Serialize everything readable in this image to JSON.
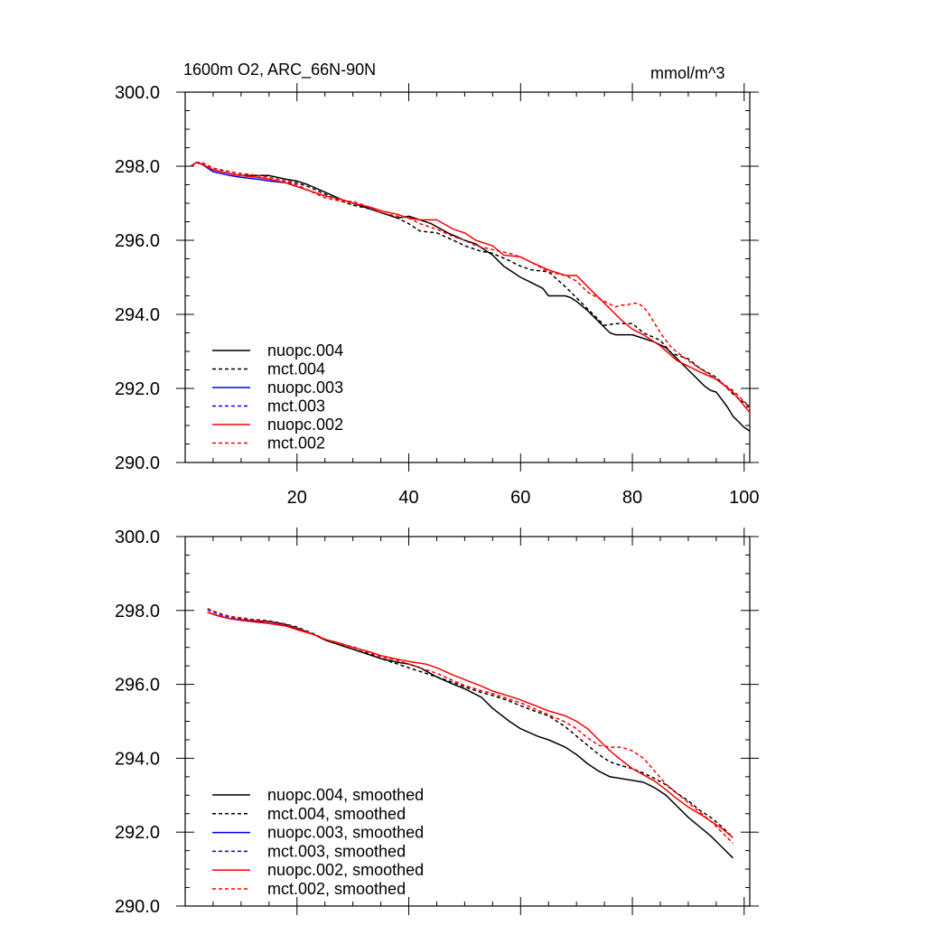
{
  "title_left": "1600m O2, ARC_66N-90N",
  "title_right": "mmol/m^3",
  "chart_data": [
    {
      "type": "line",
      "title": "1600m O2, ARC_66N-90N",
      "units": "mmol/m^3",
      "xlim": [
        0,
        101
      ],
      "ylim": [
        290,
        300
      ],
      "x_ticks": [
        20,
        40,
        60,
        80,
        100
      ],
      "x_tick_labels": [
        "20",
        "40",
        "60",
        "80",
        "100"
      ],
      "y_ticks": [
        290,
        292,
        294,
        296,
        298,
        300
      ],
      "y_tick_labels": [
        "290.0",
        "292.0",
        "294.0",
        "296.0",
        "298.0",
        "300.0"
      ],
      "legend_position": "bottom-left",
      "series": [
        {
          "name": "nuopc.004",
          "color": "#000000",
          "dash": "solid",
          "x": [
            1,
            2,
            3,
            5,
            8,
            10,
            13,
            15,
            18,
            20,
            22,
            25,
            28,
            30,
            33,
            35,
            38,
            40,
            42,
            44,
            47,
            50,
            52,
            55,
            57,
            60,
            62,
            64,
            65,
            66,
            67,
            68,
            69,
            70,
            72,
            74,
            75,
            76,
            77,
            78,
            80,
            82,
            84,
            86,
            88,
            90,
            91,
            92,
            93,
            94,
            95,
            96,
            97,
            98,
            99,
            100,
            101
          ],
          "y": [
            298.0,
            298.1,
            298.05,
            297.9,
            297.8,
            297.75,
            297.75,
            297.75,
            297.65,
            297.6,
            297.5,
            297.3,
            297.1,
            297.0,
            296.85,
            296.75,
            296.6,
            296.65,
            296.55,
            296.45,
            296.2,
            296.0,
            295.9,
            295.6,
            295.3,
            295.0,
            294.85,
            294.7,
            294.5,
            294.5,
            294.5,
            294.5,
            294.45,
            294.35,
            294.1,
            293.8,
            293.65,
            293.5,
            293.45,
            293.45,
            293.45,
            293.35,
            293.25,
            293.1,
            292.8,
            292.5,
            292.35,
            292.2,
            292.05,
            291.95,
            291.9,
            291.7,
            291.5,
            291.25,
            291.1,
            290.95,
            290.85
          ]
        },
        {
          "name": "mct.004",
          "color": "#000000",
          "dash": "dashed",
          "x": [
            1,
            2,
            3,
            5,
            8,
            10,
            13,
            15,
            18,
            20,
            22,
            25,
            28,
            30,
            33,
            35,
            38,
            40,
            42,
            45,
            48,
            50,
            53,
            55,
            58,
            60,
            62,
            65,
            68,
            70,
            72,
            75,
            77,
            80,
            82,
            85,
            87,
            90,
            92,
            95,
            98,
            101
          ],
          "y": [
            298.0,
            298.1,
            298.1,
            297.95,
            297.85,
            297.8,
            297.75,
            297.7,
            297.6,
            297.55,
            297.45,
            297.25,
            297.05,
            296.95,
            296.85,
            296.75,
            296.6,
            296.45,
            296.25,
            296.2,
            296.0,
            295.85,
            295.7,
            295.65,
            295.45,
            295.3,
            295.2,
            295.15,
            294.75,
            294.45,
            294.15,
            293.7,
            293.75,
            293.75,
            293.5,
            293.3,
            292.95,
            292.8,
            292.55,
            292.3,
            291.85,
            291.5
          ]
        },
        {
          "name": "nuopc.003",
          "color": "#0000ff",
          "dash": "solid",
          "x": [
            1,
            2,
            3,
            5,
            8,
            10,
            13,
            15,
            18,
            20
          ],
          "y": [
            298.0,
            298.1,
            298.05,
            297.85,
            297.75,
            297.7,
            297.65,
            297.6,
            297.55,
            297.45
          ]
        },
        {
          "name": "mct.003",
          "color": "#0000ff",
          "dash": "dashed",
          "x": [
            1,
            2,
            3,
            5,
            8,
            10,
            13,
            15,
            18,
            20
          ],
          "y": [
            298.0,
            298.1,
            298.05,
            297.9,
            297.8,
            297.75,
            297.7,
            297.65,
            297.55,
            297.5
          ]
        },
        {
          "name": "nuopc.002",
          "color": "#ff0000",
          "dash": "solid",
          "x": [
            1,
            2,
            3,
            5,
            8,
            10,
            13,
            15,
            18,
            20,
            22,
            25,
            28,
            30,
            33,
            35,
            38,
            40,
            42,
            45,
            48,
            50,
            52,
            55,
            57,
            60,
            62,
            65,
            68,
            70,
            72,
            75,
            78,
            80,
            82,
            85,
            88,
            90,
            92,
            95,
            98,
            101
          ],
          "y": [
            298.0,
            298.1,
            298.05,
            297.9,
            297.8,
            297.75,
            297.7,
            297.65,
            297.55,
            297.45,
            297.35,
            297.2,
            297.1,
            297.0,
            296.9,
            296.8,
            296.7,
            296.6,
            296.55,
            296.55,
            296.3,
            296.2,
            296.0,
            295.85,
            295.6,
            295.55,
            295.4,
            295.2,
            295.05,
            295.05,
            294.75,
            294.3,
            293.85,
            293.6,
            293.45,
            293.15,
            292.75,
            292.6,
            292.45,
            292.25,
            291.9,
            291.35
          ]
        },
        {
          "name": "mct.002",
          "color": "#ff0000",
          "dash": "dashed",
          "x": [
            1,
            2,
            3,
            5,
            8,
            10,
            13,
            15,
            18,
            20,
            22,
            25,
            28,
            30,
            32,
            35,
            38,
            40,
            42,
            45,
            48,
            50,
            52,
            55,
            58,
            60,
            62,
            65,
            68,
            70,
            72,
            75,
            77,
            78,
            79,
            80,
            81,
            82,
            83,
            85,
            87,
            90,
            92,
            95,
            98,
            101
          ],
          "y": [
            298.0,
            298.1,
            298.1,
            297.95,
            297.85,
            297.8,
            297.75,
            297.7,
            297.6,
            297.5,
            297.35,
            297.15,
            297.05,
            297.05,
            296.95,
            296.75,
            296.65,
            296.6,
            296.45,
            296.3,
            296.1,
            296.0,
            295.85,
            295.75,
            295.65,
            295.55,
            295.4,
            295.15,
            295.05,
            294.9,
            294.6,
            294.35,
            294.2,
            294.25,
            294.25,
            294.3,
            294.3,
            294.2,
            294.0,
            293.5,
            293.1,
            292.75,
            292.55,
            292.25,
            291.95,
            291.5
          ]
        }
      ]
    },
    {
      "type": "line",
      "xlim": [
        0,
        101
      ],
      "ylim": [
        290,
        300
      ],
      "x_ticks": [
        20,
        40,
        60,
        80,
        100
      ],
      "x_tick_labels": [
        "",
        "",
        "",
        "",
        ""
      ],
      "y_ticks": [
        290,
        292,
        294,
        296,
        298,
        300
      ],
      "y_tick_labels": [
        "290.0",
        "292.0",
        "294.0",
        "296.0",
        "298.0",
        "300.0"
      ],
      "legend_position": "bottom-left",
      "series": [
        {
          "name": "nuopc.004, smoothed",
          "color": "#000000",
          "dash": "solid",
          "x": [
            4,
            6,
            8,
            10,
            12,
            15,
            18,
            20,
            23,
            25,
            28,
            30,
            33,
            35,
            38,
            40,
            42,
            45,
            48,
            50,
            53,
            55,
            58,
            60,
            63,
            65,
            68,
            70,
            72,
            74,
            76,
            78,
            80,
            82,
            84,
            86,
            88,
            90,
            92,
            94,
            96,
            98
          ],
          "y": [
            297.95,
            297.85,
            297.78,
            297.75,
            297.72,
            297.7,
            297.62,
            297.52,
            297.35,
            297.2,
            297.05,
            296.95,
            296.8,
            296.7,
            296.6,
            296.55,
            296.45,
            296.2,
            296.0,
            295.88,
            295.65,
            295.35,
            295.0,
            294.8,
            294.6,
            294.5,
            294.3,
            294.1,
            293.85,
            293.65,
            293.5,
            293.45,
            293.4,
            293.35,
            293.2,
            293.0,
            292.7,
            292.4,
            292.15,
            291.9,
            291.6,
            291.3
          ]
        },
        {
          "name": "mct.004, smoothed",
          "color": "#000000",
          "dash": "dashed",
          "x": [
            4,
            6,
            8,
            10,
            12,
            15,
            18,
            20,
            23,
            25,
            28,
            30,
            33,
            35,
            38,
            40,
            43,
            45,
            48,
            50,
            53,
            55,
            58,
            60,
            63,
            65,
            68,
            70,
            72,
            74,
            76,
            78,
            80,
            82,
            84,
            86,
            88,
            90,
            92,
            94,
            96,
            98
          ],
          "y": [
            298.05,
            297.92,
            297.83,
            297.8,
            297.76,
            297.72,
            297.63,
            297.55,
            297.37,
            297.22,
            297.05,
            296.95,
            296.82,
            296.7,
            296.55,
            296.45,
            296.3,
            296.2,
            296.05,
            295.93,
            295.78,
            295.7,
            295.55,
            295.42,
            295.25,
            295.15,
            294.85,
            294.6,
            294.35,
            294.1,
            293.9,
            293.8,
            293.72,
            293.6,
            293.45,
            293.28,
            293.05,
            292.85,
            292.6,
            292.4,
            292.15,
            291.85
          ]
        },
        {
          "name": "nuopc.003, smoothed",
          "color": "#0000ff",
          "dash": "solid",
          "x": [
            4,
            6,
            8,
            10,
            12,
            15,
            18,
            20
          ],
          "y": [
            297.95,
            297.85,
            297.78,
            297.73,
            297.7,
            297.65,
            297.58,
            297.5
          ]
        },
        {
          "name": "mct.003, smoothed",
          "color": "#0000ff",
          "dash": "dashed",
          "x": [
            4,
            6,
            8,
            10,
            12,
            15,
            18,
            20
          ],
          "y": [
            298.02,
            297.9,
            297.82,
            297.78,
            297.74,
            297.7,
            297.6,
            297.53
          ]
        },
        {
          "name": "nuopc.002, smoothed",
          "color": "#ff0000",
          "dash": "solid",
          "x": [
            4,
            6,
            8,
            10,
            12,
            15,
            18,
            20,
            23,
            25,
            28,
            30,
            33,
            35,
            38,
            40,
            43,
            45,
            48,
            50,
            53,
            55,
            58,
            60,
            63,
            65,
            68,
            70,
            72,
            74,
            76,
            78,
            80,
            82,
            84,
            86,
            88,
            90,
            92,
            94,
            96,
            98
          ],
          "y": [
            297.95,
            297.85,
            297.78,
            297.74,
            297.7,
            297.65,
            297.58,
            297.48,
            297.35,
            297.22,
            297.1,
            297.0,
            296.88,
            296.78,
            296.68,
            296.62,
            296.55,
            296.45,
            296.25,
            296.13,
            295.95,
            295.82,
            295.68,
            295.58,
            295.4,
            295.28,
            295.15,
            295.0,
            294.8,
            294.5,
            294.2,
            293.95,
            293.72,
            293.55,
            293.38,
            293.15,
            292.9,
            292.68,
            292.5,
            292.3,
            292.1,
            291.85
          ]
        },
        {
          "name": "mct.002, smoothed",
          "color": "#ff0000",
          "dash": "dashed",
          "x": [
            4,
            6,
            8,
            10,
            12,
            15,
            18,
            20,
            23,
            25,
            28,
            30,
            33,
            35,
            38,
            40,
            43,
            45,
            48,
            50,
            53,
            55,
            58,
            60,
            63,
            65,
            68,
            70,
            72,
            74,
            76,
            78,
            80,
            82,
            84,
            86,
            88,
            90,
            92,
            94,
            96,
            98
          ],
          "y": [
            298.05,
            297.93,
            297.84,
            297.8,
            297.75,
            297.7,
            297.62,
            297.52,
            297.36,
            297.22,
            297.08,
            297.02,
            296.85,
            296.75,
            296.65,
            296.55,
            296.4,
            296.3,
            296.1,
            295.97,
            295.83,
            295.75,
            295.6,
            295.5,
            295.3,
            295.18,
            294.98,
            294.8,
            294.55,
            294.35,
            294.3,
            294.3,
            294.2,
            294.0,
            293.65,
            293.3,
            293.05,
            292.8,
            292.55,
            292.3,
            292.0,
            291.7
          ]
        }
      ]
    }
  ]
}
